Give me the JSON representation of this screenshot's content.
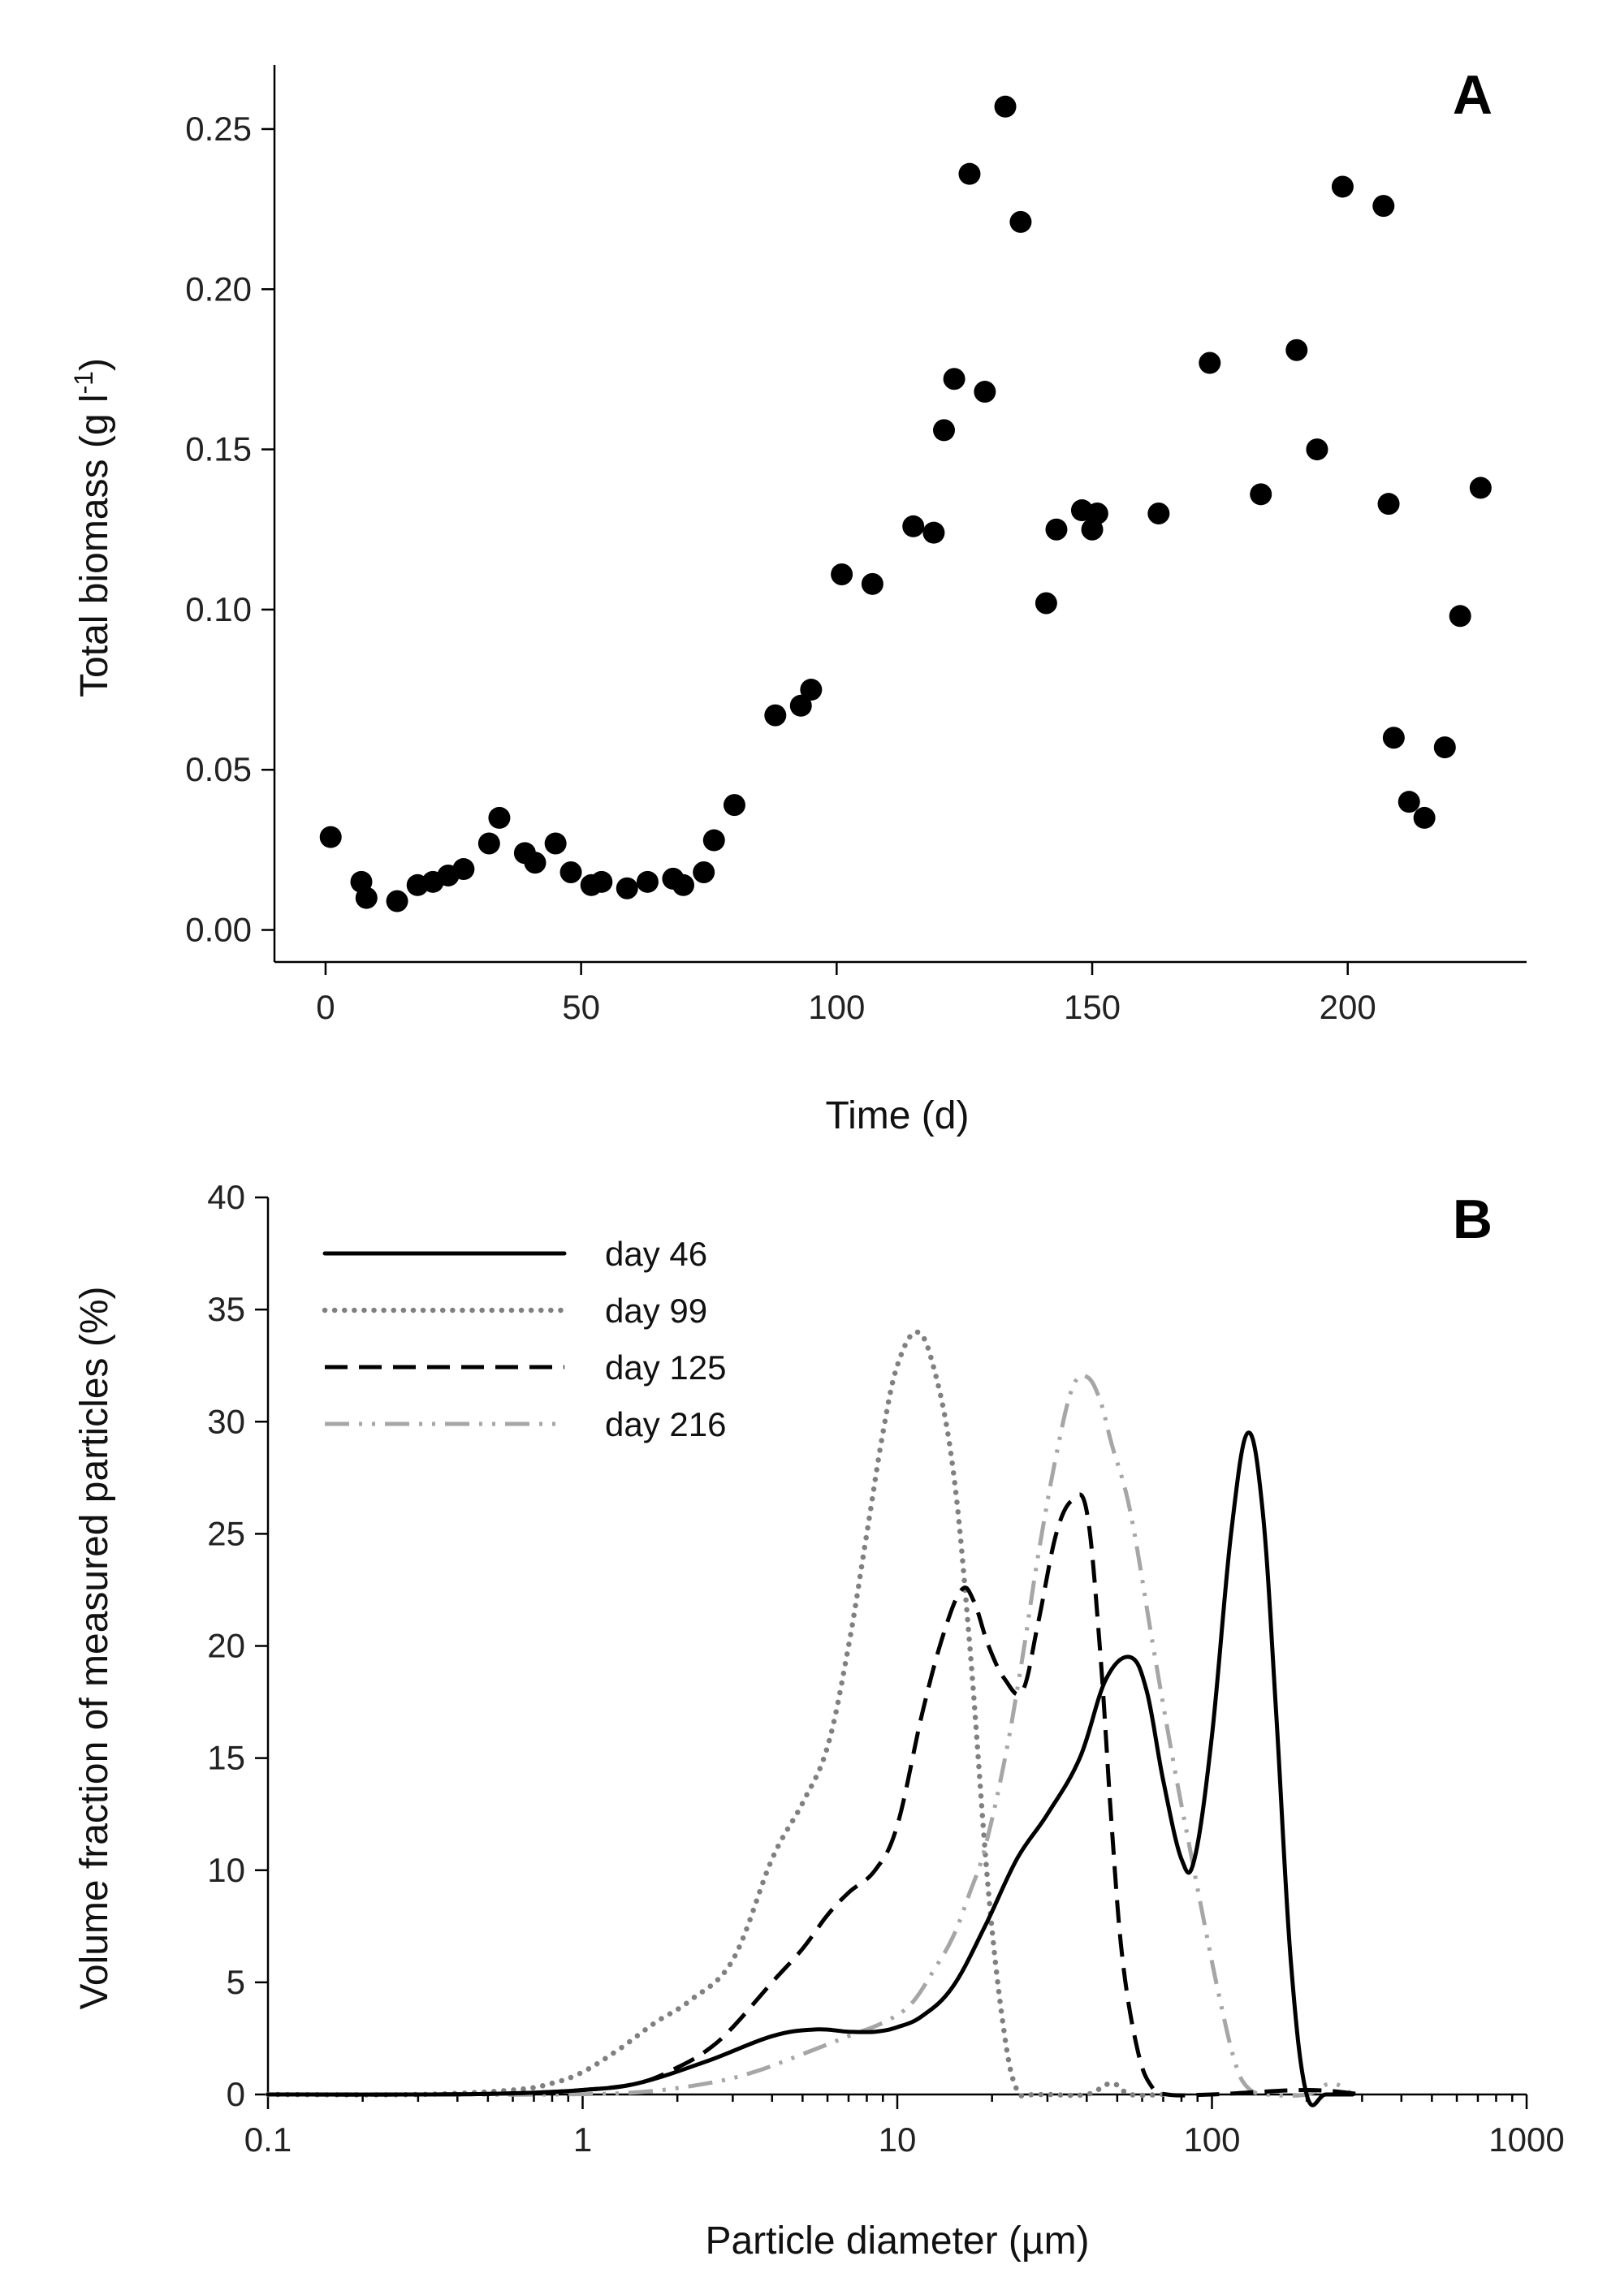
{
  "chart_data": [
    {
      "panel": "A",
      "type": "scatter",
      "xlabel": "Time (d)",
      "ylabel_main": "Total biomass (g l",
      "ylabel_sup": "-1",
      "ylabel_end": ")",
      "xlim": [
        -10,
        235
      ],
      "ylim": [
        -0.01,
        0.27
      ],
      "xticks": [
        0,
        50,
        100,
        150,
        200
      ],
      "xtick_labels": [
        "0",
        "50",
        "100",
        "150",
        "200"
      ],
      "yticks": [
        0.0,
        0.05,
        0.1,
        0.15,
        0.2,
        0.25
      ],
      "ytick_labels": [
        "0.00",
        "0.05",
        "0.10",
        "0.15",
        "0.20",
        "0.25"
      ],
      "marker_color": "#000000",
      "points": [
        [
          1,
          0.029
        ],
        [
          7,
          0.015
        ],
        [
          8,
          0.01
        ],
        [
          14,
          0.009
        ],
        [
          18,
          0.014
        ],
        [
          21,
          0.015
        ],
        [
          24,
          0.017
        ],
        [
          27,
          0.019
        ],
        [
          32,
          0.027
        ],
        [
          34,
          0.035
        ],
        [
          39,
          0.024
        ],
        [
          41,
          0.021
        ],
        [
          45,
          0.027
        ],
        [
          48,
          0.018
        ],
        [
          52,
          0.014
        ],
        [
          54,
          0.015
        ],
        [
          59,
          0.013
        ],
        [
          63,
          0.015
        ],
        [
          68,
          0.016
        ],
        [
          70,
          0.014
        ],
        [
          74,
          0.018
        ],
        [
          76,
          0.028
        ],
        [
          80,
          0.039
        ],
        [
          88,
          0.067
        ],
        [
          93,
          0.07
        ],
        [
          95,
          0.075
        ],
        [
          101,
          0.111
        ],
        [
          107,
          0.108
        ],
        [
          115,
          0.126
        ],
        [
          119,
          0.124
        ],
        [
          121,
          0.156
        ],
        [
          123,
          0.172
        ],
        [
          126,
          0.236
        ],
        [
          129,
          0.168
        ],
        [
          133,
          0.257
        ],
        [
          136,
          0.221
        ],
        [
          141,
          0.102
        ],
        [
          143,
          0.125
        ],
        [
          148,
          0.131
        ],
        [
          150,
          0.125
        ],
        [
          151,
          0.13
        ],
        [
          163,
          0.13
        ],
        [
          173,
          0.177
        ],
        [
          183,
          0.136
        ],
        [
          190,
          0.181
        ],
        [
          194,
          0.15
        ],
        [
          199,
          0.232
        ],
        [
          207,
          0.226
        ],
        [
          208,
          0.133
        ],
        [
          209,
          0.06
        ],
        [
          212,
          0.04
        ],
        [
          215,
          0.035
        ],
        [
          219,
          0.057
        ],
        [
          222,
          0.098
        ],
        [
          226,
          0.138
        ]
      ]
    },
    {
      "panel": "B",
      "type": "line",
      "xscale": "log",
      "xlabel": "Particle diameter (µm)",
      "ylabel": "Volume fraction of measured particles (%)",
      "xlim": [
        0.1,
        1000
      ],
      "ylim": [
        0,
        40
      ],
      "xticks": [
        0.1,
        1,
        10,
        100,
        1000
      ],
      "xtick_labels": [
        "0.1",
        "1",
        "10",
        "100",
        "1000"
      ],
      "yticks": [
        0,
        5,
        10,
        15,
        20,
        25,
        30,
        35,
        40
      ],
      "ytick_labels": [
        "0",
        "5",
        "10",
        "15",
        "20",
        "25",
        "30",
        "35",
        "40"
      ],
      "legend_position": "top-left",
      "series": [
        {
          "name": "day 46",
          "color": "#000000",
          "style": "solid",
          "x": [
            0.1,
            0.3,
            0.6,
            1.0,
            1.5,
            2.5,
            4.0,
            5.5,
            7.0,
            8.5,
            10,
            12,
            15,
            19,
            24,
            30,
            38,
            46,
            55,
            62,
            70,
            80,
            88,
            100,
            115,
            130,
            145,
            160,
            178,
            200,
            230,
            280
          ],
          "y": [
            0,
            0,
            0.05,
            0.2,
            0.5,
            1.5,
            2.6,
            2.9,
            2.8,
            2.8,
            3.0,
            3.5,
            4.8,
            7.5,
            10.5,
            12.5,
            15.0,
            18.5,
            19.5,
            18.0,
            14.0,
            10.5,
            10.5,
            16.0,
            25.0,
            29.5,
            26.0,
            17.0,
            6.0,
            0,
            0,
            0
          ]
        },
        {
          "name": "day 99",
          "color": "#808080",
          "style": "dotted",
          "x": [
            0.1,
            0.3,
            0.6,
            0.8,
            1.0,
            1.3,
            1.7,
            2.2,
            3.0,
            4.0,
            5.0,
            6.0,
            7.0,
            8.0,
            9.0,
            10.0,
            11.5,
            13.0,
            15.0,
            17.0,
            19.5,
            22.0,
            24.0,
            26.0,
            30.0,
            40.0,
            48.0,
            55.0,
            70.0
          ],
          "y": [
            0,
            0,
            0.2,
            0.5,
            1.0,
            2.0,
            3.2,
            4.2,
            6.0,
            10.5,
            13.0,
            15.5,
            20.0,
            25.0,
            29.5,
            32.5,
            34.0,
            32.5,
            28.0,
            20.0,
            9.0,
            2.5,
            0.2,
            0,
            0,
            0,
            0.5,
            0,
            0
          ]
        },
        {
          "name": "day 125",
          "color": "#000000",
          "style": "dashed",
          "x": [
            0.1,
            0.3,
            0.6,
            1.0,
            1.5,
            2.0,
            2.5,
            3.0,
            4.0,
            5.0,
            6.0,
            7.0,
            8.5,
            10.0,
            12.0,
            14.0,
            16.0,
            17.5,
            19.5,
            22.0,
            25.0,
            28.0,
            32.0,
            36.0,
            40.0,
            44.0,
            48.0,
            52.0,
            58.0,
            64.0,
            72.0,
            100,
            200,
            300
          ],
          "y": [
            0,
            0,
            0.05,
            0.2,
            0.5,
            1.2,
            2.0,
            3.0,
            5.0,
            6.5,
            8.0,
            9.0,
            10.0,
            12.0,
            17.0,
            20.5,
            22.5,
            22.0,
            20.0,
            18.5,
            18.0,
            21.0,
            25.0,
            26.5,
            26.0,
            20.0,
            12.0,
            6.0,
            2.0,
            0.4,
            0,
            0,
            0.2,
            0
          ]
        },
        {
          "name": "day 216",
          "color": "#a6a6a6",
          "style": "dashdotdot",
          "x": [
            0.1,
            0.3,
            0.8,
            1.5,
            2.5,
            3.5,
            5.0,
            7.0,
            9.0,
            11.0,
            13.0,
            15.0,
            17.0,
            19.0,
            22.0,
            25.0,
            28.0,
            32.0,
            36.0,
            40.0,
            44.0,
            48.0,
            55.0,
            65.0,
            75.0,
            85.0,
            95.0,
            105.0,
            118.0,
            130.0,
            150.0,
            200.0,
            240.0,
            280.0
          ],
          "y": [
            0,
            0,
            0,
            0.1,
            0.5,
            1.0,
            1.8,
            2.6,
            3.2,
            4.0,
            5.5,
            7.0,
            9.0,
            11.0,
            15.0,
            19.5,
            24.0,
            28.5,
            31.5,
            32.0,
            31.0,
            29.0,
            26.0,
            20.0,
            15.0,
            11.0,
            7.5,
            4.5,
            1.5,
            0.3,
            0,
            0,
            0.5,
            0
          ]
        }
      ]
    }
  ]
}
